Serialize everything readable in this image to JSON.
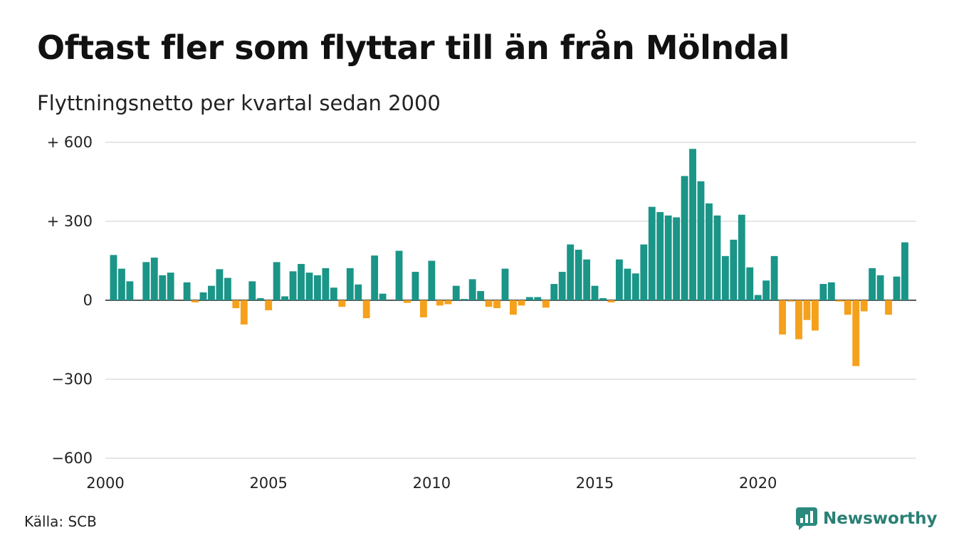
{
  "title": "Oftast fler som flyttar till än från Mölndal",
  "subtitle": "Flyttningsnetto per kvartal sedan 2000",
  "source": "Källa: SCB",
  "brand": {
    "name": "Newsworthy",
    "icon": "newsworthy-logo-icon",
    "color": "#2a8a7e"
  },
  "chart_data": {
    "type": "bar",
    "title": "Oftast fler som flyttar till än från Mölndal",
    "subtitle": "Flyttningsnetto per kvartal sedan 2000",
    "x_start": 2000.25,
    "x_step": 0.25,
    "xlim": [
      2000,
      2024.85
    ],
    "x_ticks": [
      2000,
      2005,
      2010,
      2015,
      2020
    ],
    "x_tick_labels": [
      "2000",
      "2005",
      "2010",
      "2015",
      "2020"
    ],
    "ylim": [
      -600,
      600
    ],
    "y_ticks": [
      -600,
      -300,
      0,
      300,
      600
    ],
    "y_tick_labels": [
      "−600",
      "−300",
      "0",
      "+ 300",
      "+ 600"
    ],
    "grid": true,
    "colors": {
      "positive": "#1a9587",
      "negative": "#f5a11c"
    },
    "values": [
      172,
      120,
      72,
      0,
      145,
      162,
      95,
      105,
      0,
      68,
      -8,
      30,
      55,
      118,
      85,
      -30,
      -92,
      72,
      8,
      -38,
      145,
      15,
      110,
      138,
      105,
      95,
      122,
      48,
      -25,
      122,
      60,
      -68,
      170,
      25,
      0,
      188,
      -10,
      108,
      -65,
      150,
      -20,
      -15,
      55,
      5,
      80,
      35,
      -25,
      -30,
      120,
      -55,
      -20,
      12,
      12,
      -28,
      62,
      108,
      212,
      192,
      155,
      55,
      8,
      -8,
      155,
      120,
      102,
      212,
      355,
      335,
      322,
      315,
      472,
      575,
      452,
      368,
      322,
      168,
      230,
      325,
      125,
      20,
      75,
      168,
      -130,
      -5,
      -148,
      -75,
      -115,
      62,
      68,
      -5,
      -55,
      -250,
      -42,
      122,
      95,
      -55,
      90,
      220
    ]
  }
}
